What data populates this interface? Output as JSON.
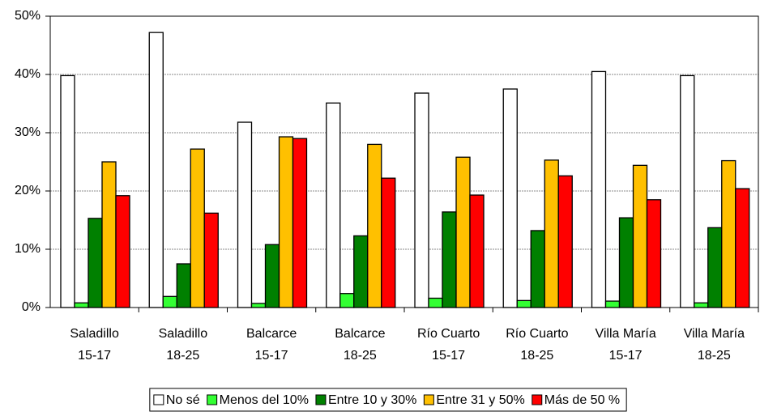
{
  "chart_data": {
    "type": "bar",
    "categories": [
      [
        "Saladillo",
        "15-17"
      ],
      [
        "Saladillo",
        "18-25"
      ],
      [
        "Balcarce",
        "15-17"
      ],
      [
        "Balcarce",
        "18-25"
      ],
      [
        "Río Cuarto",
        "15-17"
      ],
      [
        "Río Cuarto",
        "18-25"
      ],
      [
        "Villa María",
        "15-17"
      ],
      [
        "Villa María",
        "18-25"
      ]
    ],
    "series": [
      {
        "name": "No sé",
        "color": "#ffffff",
        "values": [
          39.8,
          47.2,
          31.8,
          35.1,
          36.8,
          37.5,
          40.5,
          39.8
        ]
      },
      {
        "name": "Menos del 10%",
        "color": "#33ff33",
        "values": [
          0.8,
          1.9,
          0.7,
          2.4,
          1.6,
          1.2,
          1.1,
          0.8
        ]
      },
      {
        "name": "Entre 10 y 30%",
        "color": "#008000",
        "values": [
          15.3,
          7.5,
          10.8,
          12.3,
          16.4,
          13.2,
          15.4,
          13.7
        ]
      },
      {
        "name": "Entre 31 y 50%",
        "color": "#ffc000",
        "values": [
          25.0,
          27.2,
          29.3,
          28.0,
          25.8,
          25.3,
          24.4,
          25.2
        ]
      },
      {
        "name": "Más de 50 %",
        "color": "#ff0000",
        "values": [
          19.2,
          16.2,
          29.0,
          22.2,
          19.3,
          22.6,
          18.5,
          20.4
        ]
      }
    ],
    "ylim": [
      0,
      50
    ],
    "yticks": [
      {
        "value": 0,
        "label": "0%"
      },
      {
        "value": 10,
        "label": "10%"
      },
      {
        "value": 20,
        "label": "20%"
      },
      {
        "value": 30,
        "label": "30%"
      },
      {
        "value": 40,
        "label": "40%"
      },
      {
        "value": 50,
        "label": "50%"
      }
    ],
    "grid": true,
    "legend": "bottom"
  }
}
